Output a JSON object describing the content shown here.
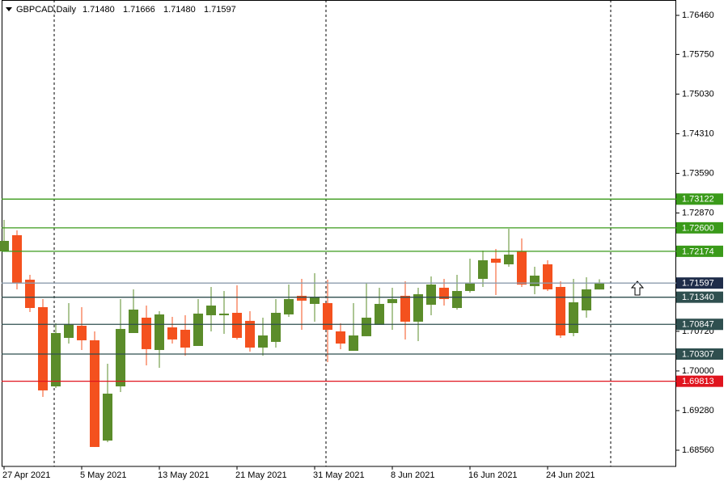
{
  "chart_data": {
    "type": "candlestick",
    "title": "GBPCAD,Daily",
    "title_values": [
      "1.71480",
      "1.71666",
      "1.71480",
      "1.71597"
    ],
    "categories": [
      "27 Apr 2021",
      null,
      null,
      null,
      null,
      null,
      "5 May 2021",
      null,
      null,
      null,
      null,
      null,
      "13 May 2021",
      null,
      null,
      null,
      null,
      null,
      "21 May 2021",
      null,
      null,
      null,
      null,
      null,
      "31 May 2021",
      null,
      null,
      null,
      null,
      null,
      "8 Jun 2021",
      null,
      null,
      null,
      null,
      null,
      "16 Jun 2021",
      null,
      null,
      null,
      null,
      null,
      "24 Jun 2021",
      null,
      null,
      null,
      null
    ],
    "open": [
      1.72172,
      1.72466,
      1.71658,
      1.71159,
      1.6972,
      1.70601,
      1.70821,
      1.70557,
      1.68736,
      1.6972,
      1.70689,
      1.70968,
      1.70381,
      1.70792,
      1.70748,
      1.70454,
      1.71012,
      1.71012,
      1.71056,
      1.7091,
      1.70425,
      1.70528,
      1.71027,
      1.71365,
      1.71218,
      1.71233,
      1.70719,
      1.70366,
      1.70631,
      1.70836,
      1.71233,
      1.71365,
      1.70895,
      1.71203,
      1.71512,
      1.71144,
      1.71453,
      1.71673,
      1.7204,
      1.71937,
      1.72172,
      1.71541,
      1.71937,
      1.71526,
      1.70689,
      1.711,
      1.7148
    ],
    "high": [
      1.72745,
      1.72554,
      1.71746,
      1.71306,
      1.70865,
      1.71233,
      1.71159,
      1.70719,
      1.70131,
      1.71306,
      1.71482,
      1.71188,
      1.71086,
      1.70983,
      1.71012,
      1.71306,
      1.71526,
      1.71453,
      1.71556,
      1.71086,
      1.70968,
      1.71306,
      1.7157,
      1.71673,
      1.71776,
      1.71658,
      1.70865,
      1.71233,
      1.716,
      1.71512,
      1.71512,
      1.71629,
      1.71512,
      1.71717,
      1.71673,
      1.71746,
      1.7204,
      1.72187,
      1.72216,
      1.72583,
      1.72407,
      1.71893,
      1.72011,
      1.71629,
      1.71673,
      1.71702,
      1.71666
    ],
    "low": [
      1.72172,
      1.71482,
      1.71071,
      1.69529,
      1.69691,
      1.70498,
      1.70381,
      1.68619,
      1.68707,
      1.69617,
      1.70689,
      1.70102,
      1.70058,
      1.70498,
      1.70278,
      1.70454,
      1.70719,
      1.70675,
      1.70572,
      1.70352,
      1.70278,
      1.70425,
      1.70983,
      1.70748,
      1.70895,
      1.70161,
      1.70396,
      1.70366,
      1.70631,
      1.70836,
      1.70748,
      1.70572,
      1.70542,
      1.71012,
      1.71188,
      1.71115,
      1.71423,
      1.71526,
      1.71379,
      1.71893,
      1.71526,
      1.71394,
      1.71453,
      1.70601,
      1.70631,
      1.70968,
      1.7148
    ],
    "close": [
      1.72363,
      1.716,
      1.71144,
      1.69647,
      1.70689,
      1.70851,
      1.70557,
      1.68619,
      1.69588,
      1.70763,
      1.71115,
      1.70396,
      1.71027,
      1.70572,
      1.70425,
      1.71042,
      1.71188,
      1.71042,
      1.70601,
      1.70425,
      1.70645,
      1.71056,
      1.71306,
      1.71277,
      1.71335,
      1.70748,
      1.70498,
      1.70645,
      1.70968,
      1.71218,
      1.71306,
      1.70895,
      1.71394,
      1.7157,
      1.71306,
      1.71453,
      1.716,
      1.72011,
      1.71967,
      1.72114,
      1.7157,
      1.71732,
      1.71482,
      1.70645,
      1.71247,
      1.71482,
      1.71597
    ],
    "up_color": "#5b8c2a",
    "down_color": "#f4511e",
    "ylim": [
      1.68266,
      1.76739
    ],
    "yticks": [
      {
        "value": 1.7646,
        "label": "1.76460"
      },
      {
        "value": 1.7575,
        "label": "1.75750"
      },
      {
        "value": 1.7503,
        "label": "1.75030"
      },
      {
        "value": 1.7431,
        "label": "1.74310"
      },
      {
        "value": 1.7359,
        "label": "1.73590"
      },
      {
        "value": 1.7287,
        "label": "1.72870"
      },
      {
        "value": 1.7072,
        "label": "1.70720"
      },
      {
        "value": 1.7,
        "label": "1.70000"
      },
      {
        "value": 1.6928,
        "label": "1.69280"
      },
      {
        "value": 1.6856,
        "label": "1.68560"
      }
    ],
    "levels": [
      {
        "value": 1.73122,
        "label": "1.73122",
        "color": "#3a9a1a"
      },
      {
        "value": 1.726,
        "label": "1.72600",
        "color": "#3a9a1a"
      },
      {
        "value": 1.72174,
        "label": "1.72174",
        "color": "#3a9a1a"
      },
      {
        "value": 1.71597,
        "label": "1.71597",
        "color": "#1f2d4a",
        "line_color": "#8c9cae"
      },
      {
        "value": 1.7134,
        "label": "1.71340",
        "color": "#2f4f4f"
      },
      {
        "value": 1.70847,
        "label": "1.70847",
        "color": "#2f4f4f"
      },
      {
        "value": 1.70307,
        "label": "1.70307",
        "color": "#2f4f4f"
      },
      {
        "value": 1.69813,
        "label": "1.69813",
        "color": "#e0141e"
      }
    ]
  }
}
